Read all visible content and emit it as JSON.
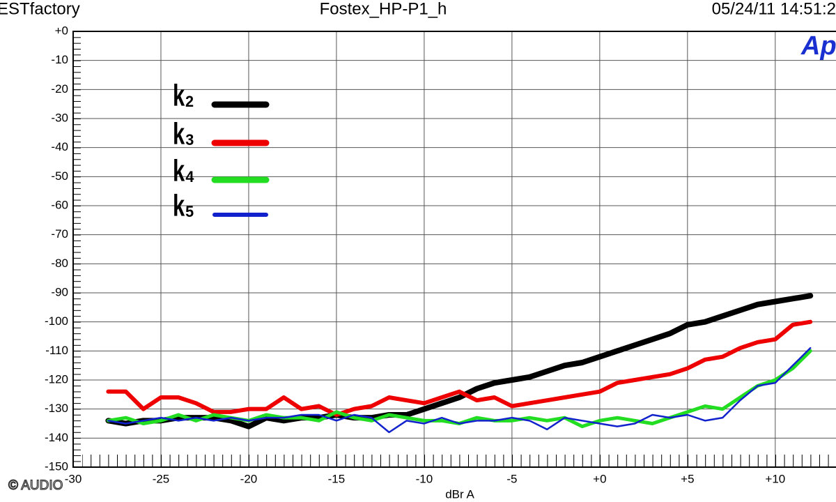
{
  "header": {
    "left": "ESTfactory",
    "center": "Fostex_HP-P1_h",
    "right": "05/24/11 14:51:2",
    "logo": "Ap"
  },
  "footer": {
    "copyright": "© AUDIO"
  },
  "chart_data": {
    "type": "line",
    "xlabel": "dBr A",
    "grid": true,
    "xlim": [
      -30,
      13.5
    ],
    "ylim": [
      -150,
      0
    ],
    "xticks": [
      -30,
      -25,
      -20,
      -15,
      -10,
      -5,
      {
        "value": 0,
        "label": "+0"
      },
      {
        "value": 5,
        "label": "+5"
      },
      {
        "value": 10,
        "label": "+10"
      }
    ],
    "yticks": [
      {
        "value": 0,
        "label": "+0"
      },
      -10,
      -20,
      -30,
      -40,
      -50,
      -60,
      -70,
      -80,
      -90,
      -100,
      -110,
      -120,
      -130,
      -140,
      -150
    ],
    "x": [
      -28,
      -27,
      -26,
      -25,
      -24,
      -23,
      -22,
      -21,
      -20,
      -19,
      -18,
      -17,
      -16,
      -15,
      -14,
      -13,
      -12,
      -11,
      -10,
      -9,
      -8,
      -7,
      -6,
      -5,
      -4,
      -3,
      -2,
      -1,
      0,
      1,
      2,
      3,
      4,
      5,
      6,
      7,
      8,
      9,
      10,
      11,
      12
    ],
    "series": [
      {
        "name": "k₂",
        "color": "#000000",
        "values": [
          -134,
          -135,
          -134,
          -134,
          -133,
          -133,
          -133,
          -134,
          -136,
          -133,
          -134,
          -133,
          -133,
          -132,
          -133,
          -133,
          -132,
          -132,
          -130,
          -128,
          -126,
          -123,
          -121,
          -120,
          -119,
          -117,
          -115,
          -114,
          -112,
          -110,
          -108,
          -106,
          -104,
          -101,
          -100,
          -98,
          -96,
          -94,
          -93,
          -92,
          -91
        ]
      },
      {
        "name": "k₃",
        "color": "#ee0000",
        "values": [
          -124,
          -124,
          -130,
          -126,
          -126,
          -128,
          -131,
          -131,
          -130,
          -130,
          -126,
          -130,
          -129,
          -132,
          -130,
          -129,
          -126,
          -127,
          -128,
          -126,
          -124,
          -127,
          -126,
          -129,
          -128,
          -127,
          -126,
          -125,
          -124,
          -121,
          -120,
          -119,
          -118,
          -116,
          -113,
          -112,
          -109,
          -107,
          -106,
          -101,
          -100
        ]
      },
      {
        "name": "k₄",
        "color": "#22dd22",
        "values": [
          -134,
          -133,
          -135,
          -134,
          -132,
          -134,
          -132,
          -133,
          -134,
          -132,
          -133,
          -133,
          -134,
          -131,
          -133,
          -134,
          -132,
          -133,
          -134,
          -134,
          -135,
          -133,
          -134,
          -134,
          -133,
          -134,
          -133,
          -136,
          -134,
          -133,
          -134,
          -135,
          -133,
          -131,
          -129,
          -130,
          -126,
          -122,
          -120,
          -116,
          -110
        ]
      },
      {
        "name": "k₅",
        "color": "#1122cc",
        "values": [
          -134,
          -135,
          -134,
          -133,
          -134,
          -133,
          -134,
          -133,
          -134,
          -133,
          -133,
          -132,
          -132,
          -134,
          -132,
          -133,
          -138,
          -134,
          -135,
          -133,
          -135,
          -134,
          -134,
          -133,
          -134,
          -137,
          -133,
          -134,
          -135,
          -136,
          -135,
          -132,
          -133,
          -132,
          -134,
          -133,
          -127,
          -122,
          -121,
          -115,
          -109
        ]
      }
    ]
  }
}
